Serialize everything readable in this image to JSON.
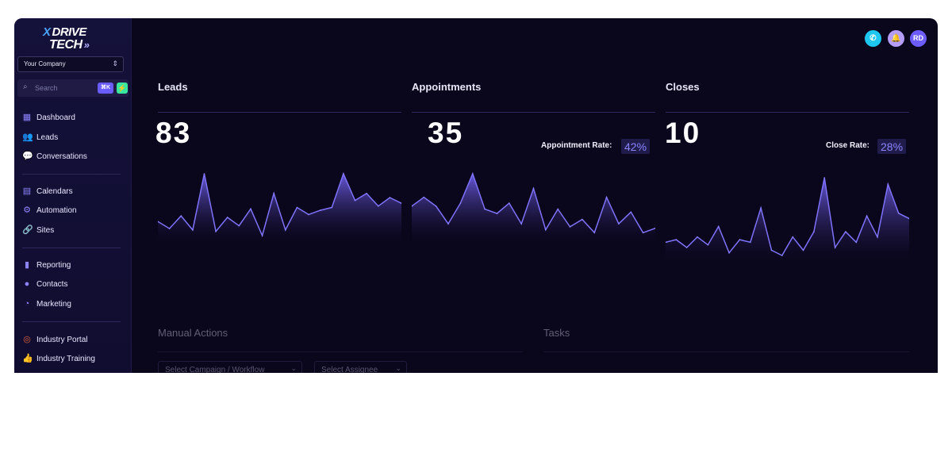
{
  "brand": {
    "line1": "DRIVE",
    "line2": "TECH",
    "x_mark": "X",
    "arrows": "»"
  },
  "company_select": {
    "value": "Your Company"
  },
  "search": {
    "placeholder": "Search",
    "shortcut": "⌘K",
    "bolt": "⚡"
  },
  "nav": {
    "group1": [
      {
        "label": "Dashboard",
        "icon": "dashboard-icon"
      },
      {
        "label": "Leads",
        "icon": "users-icon"
      },
      {
        "label": "Conversations",
        "icon": "chat-icon"
      }
    ],
    "group2": [
      {
        "label": "Calendars",
        "icon": "calendar-icon"
      },
      {
        "label": "Automation",
        "icon": "gears-icon"
      },
      {
        "label": "Sites",
        "icon": "link-icon"
      }
    ],
    "group3": [
      {
        "label": "Reporting",
        "icon": "bar-chart-icon"
      },
      {
        "label": "Contacts",
        "icon": "person-icon"
      },
      {
        "label": "Marketing",
        "icon": "marketing-icon"
      }
    ],
    "group4": [
      {
        "label": "Industry Portal",
        "icon": "target-icon"
      },
      {
        "label": "Industry Training",
        "icon": "thumbs-up-icon"
      }
    ]
  },
  "header": {
    "avatar_initials": "RD"
  },
  "colors": {
    "accent": "#6a5cff",
    "phone": "#1ec7f0",
    "bell": "#b59cff",
    "avatar": "#6d5cff",
    "background": "#0a061b"
  },
  "metrics": {
    "leads": {
      "title": "Leads",
      "value": "83"
    },
    "appointments": {
      "title": "Appointments",
      "value": "35",
      "rate_label": "Appointment Rate:",
      "rate_value": "42%"
    },
    "closes": {
      "title": "Closes",
      "value": "10",
      "rate_label": "Close Rate:",
      "rate_value": "28%"
    }
  },
  "chart_data": [
    {
      "type": "area",
      "name": "leads",
      "values": [
        10,
        5,
        14,
        4,
        44,
        3,
        13,
        7,
        19,
        0,
        30,
        4,
        20,
        15,
        18,
        20,
        44,
        25,
        30,
        21,
        27,
        23
      ]
    },
    {
      "type": "area",
      "name": "appointments",
      "values": [
        20,
        26,
        20,
        8,
        22,
        42,
        18,
        15,
        22,
        8,
        32,
        4,
        18,
        6,
        11,
        2,
        26,
        8,
        16,
        2,
        5
      ]
    },
    {
      "type": "area",
      "name": "closes",
      "values": [
        10,
        12,
        6,
        14,
        8,
        22,
        2,
        12,
        10,
        36,
        4,
        0,
        14,
        4,
        18,
        59,
        6,
        18,
        10,
        30,
        14,
        54,
        32,
        28
      ]
    }
  ],
  "bottom": {
    "manual_actions": {
      "title": "Manual Actions",
      "campaign_select": "Select Campaign / Workflow",
      "assignee_select": "Select Assignee"
    },
    "tasks": {
      "title": "Tasks"
    }
  }
}
